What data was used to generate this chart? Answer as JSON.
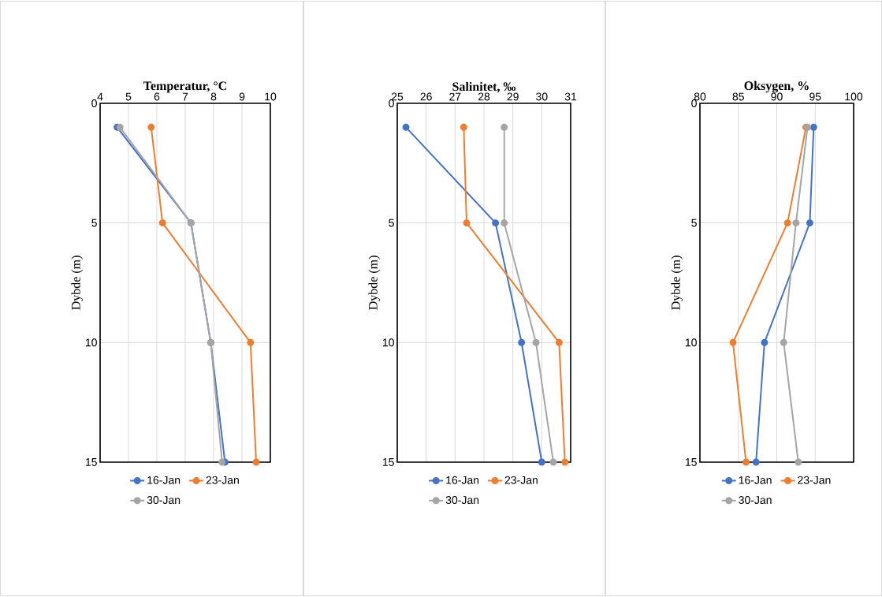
{
  "chart_data": [
    {
      "type": "line",
      "title": "Temperatur, °C",
      "ylabel": "Dybde (m)",
      "xlim": [
        4,
        10
      ],
      "xticks": [
        4,
        5,
        6,
        7,
        8,
        9,
        10
      ],
      "ylim": [
        15,
        0
      ],
      "yticks": [
        0,
        5,
        10,
        15
      ],
      "grid": true,
      "legend": "bottom",
      "marker": "circle",
      "series": [
        {
          "name": "16-Jan",
          "color": "#4472c4",
          "x": [
            4.6,
            7.2,
            7.9,
            8.4
          ],
          "values": [
            1,
            5,
            10,
            15
          ]
        },
        {
          "name": "23-Jan",
          "color": "#ed7d31",
          "x": [
            5.8,
            6.2,
            9.3,
            9.5
          ],
          "values": [
            1,
            5,
            10,
            15
          ]
        },
        {
          "name": "30-Jan",
          "color": "#a5a5a5",
          "x": [
            4.7,
            7.2,
            7.9,
            8.3
          ],
          "values": [
            1,
            5,
            10,
            15
          ]
        }
      ]
    },
    {
      "type": "line",
      "title": "Salinitet, ‰",
      "ylabel": "Dybde (m)",
      "xlim": [
        25,
        31
      ],
      "xticks": [
        25,
        26,
        27,
        28,
        29,
        30,
        31
      ],
      "ylim": [
        15,
        0
      ],
      "yticks": [
        0,
        5,
        10,
        15
      ],
      "grid": true,
      "legend": "bottom",
      "marker": "circle",
      "series": [
        {
          "name": "16-Jan",
          "color": "#4472c4",
          "x": [
            25.3,
            28.4,
            29.3,
            30.0
          ],
          "values": [
            1,
            5,
            10,
            15
          ]
        },
        {
          "name": "23-Jan",
          "color": "#ed7d31",
          "x": [
            27.3,
            27.4,
            30.6,
            30.8
          ],
          "values": [
            1,
            5,
            10,
            15
          ]
        },
        {
          "name": "30-Jan",
          "color": "#a5a5a5",
          "x": [
            28.7,
            28.7,
            29.8,
            30.4
          ],
          "values": [
            1,
            5,
            10,
            15
          ]
        }
      ]
    },
    {
      "type": "line",
      "title": "Oksygen, %",
      "ylabel": "Dybde (m)",
      "xlim": [
        80,
        100
      ],
      "xticks": [
        80,
        85,
        90,
        95,
        100
      ],
      "ylim": [
        15,
        0
      ],
      "yticks": [
        0,
        5,
        10,
        15
      ],
      "grid": true,
      "legend": "bottom",
      "marker": "circle",
      "series": [
        {
          "name": "16-Jan",
          "color": "#4472c4",
          "x": [
            94.8,
            94.3,
            88.4,
            87.3
          ],
          "values": [
            1,
            5,
            10,
            15
          ]
        },
        {
          "name": "23-Jan",
          "color": "#ed7d31",
          "x": [
            93.8,
            91.4,
            84.3,
            86.0
          ],
          "values": [
            1,
            5,
            10,
            15
          ]
        },
        {
          "name": "30-Jan",
          "color": "#a5a5a5",
          "x": [
            94.0,
            92.5,
            90.9,
            92.8
          ],
          "values": [
            1,
            5,
            10,
            15
          ]
        }
      ]
    }
  ]
}
